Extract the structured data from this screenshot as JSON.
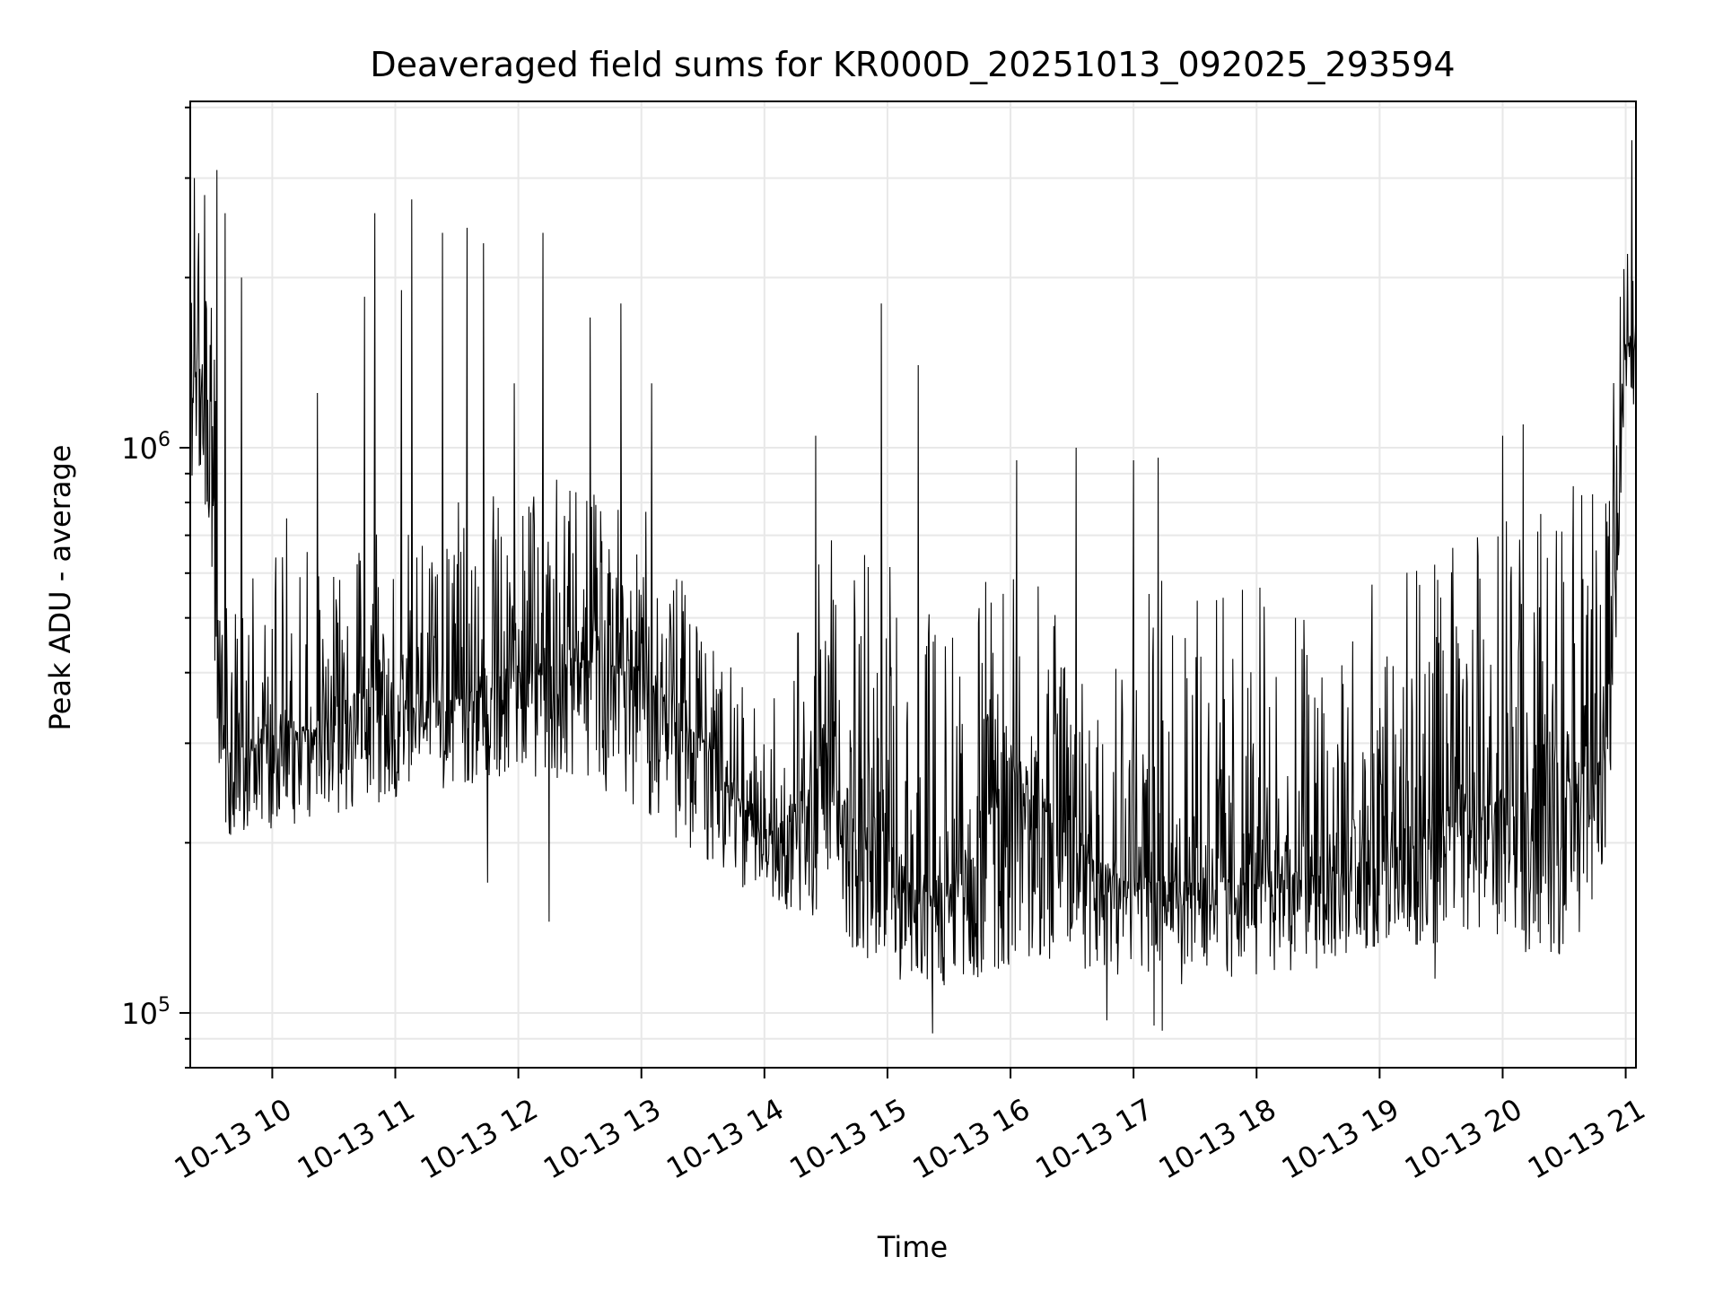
{
  "chart_data": {
    "type": "line",
    "title": "Deaveraged field sums for KR000D_20251013_092025_293594",
    "xlabel": "Time",
    "ylabel": "Peak ADU - average",
    "yscale": "log",
    "xlim": [
      "2025-10-13T09:20",
      "2025-10-13T21:05"
    ],
    "ylim": [
      80000,
      4100000
    ],
    "grid": true,
    "x_ticks": [
      "10-13 10",
      "10-13 11",
      "10-13 12",
      "10-13 13",
      "10-13 14",
      "10-13 15",
      "10-13 16",
      "10-13 17",
      "10-13 18",
      "10-13 19",
      "10-13 20",
      "10-13 21"
    ],
    "x_tick_hours": [
      10,
      11,
      12,
      13,
      14,
      15,
      16,
      17,
      18,
      19,
      20,
      21
    ],
    "y_ticks": [
      {
        "base": "10",
        "exp": "5",
        "value": 100000
      },
      {
        "base": "10",
        "exp": "6",
        "value": 1000000
      }
    ],
    "series": [
      {
        "color": "#000000",
        "profile": {
          "x": [
            "2025-10-13T09:20",
            "2025-10-13T09:30",
            "2025-10-13T09:35",
            "2025-10-13T09:45",
            "2025-10-13T10:00",
            "2025-10-13T10:30",
            "2025-10-13T11:00",
            "2025-10-13T11:30",
            "2025-10-13T12:00",
            "2025-10-13T12:30",
            "2025-10-13T13:00",
            "2025-10-13T13:30",
            "2025-10-13T14:00",
            "2025-10-13T14:30",
            "2025-10-13T15:00",
            "2025-10-13T15:30",
            "2025-10-13T16:00",
            "2025-10-13T16:30",
            "2025-10-13T17:00",
            "2025-10-13T17:30",
            "2025-10-13T18:00",
            "2025-10-13T18:30",
            "2025-10-13T19:00",
            "2025-10-13T19:30",
            "2025-10-13T20:00",
            "2025-10-13T20:30",
            "2025-10-13T20:50",
            "2025-10-13T21:00",
            "2025-10-13T21:05"
          ],
          "median": [
            1500000,
            1200000,
            310000,
            290000,
            310000,
            320000,
            340000,
            360000,
            400000,
            420000,
            400000,
            300000,
            200000,
            270000,
            170000,
            160000,
            270000,
            200000,
            170000,
            170000,
            170000,
            175000,
            180000,
            210000,
            240000,
            240000,
            280000,
            1500000,
            1600000
          ],
          "low": [
            900000,
            700000,
            210000,
            200000,
            210000,
            220000,
            240000,
            250000,
            260000,
            260000,
            230000,
            180000,
            160000,
            140000,
            115000,
            110000,
            120000,
            120000,
            115000,
            110000,
            115000,
            120000,
            130000,
            130000,
            130000,
            125000,
            160000,
            1100000,
            1200000
          ],
          "high": [
            2600000,
            2400000,
            650000,
            600000,
            650000,
            680000,
            720000,
            800000,
            850000,
            900000,
            800000,
            500000,
            330000,
            700000,
            650000,
            500000,
            650000,
            500000,
            600000,
            600000,
            580000,
            560000,
            600000,
            650000,
            800000,
            850000,
            900000,
            2400000,
            2500000
          ]
        },
        "spikes": [
          {
            "x": "2025-10-13T09:22",
            "y": 3000000
          },
          {
            "x": "2025-10-13T09:27",
            "y": 2800000
          },
          {
            "x": "2025-10-13T09:33",
            "y": 3100000
          },
          {
            "x": "2025-10-13T09:37",
            "y": 2600000
          },
          {
            "x": "2025-10-13T09:45",
            "y": 2000000
          },
          {
            "x": "2025-10-13T10:07",
            "y": 750000
          },
          {
            "x": "2025-10-13T10:22",
            "y": 1250000
          },
          {
            "x": "2025-10-13T10:45",
            "y": 1850000
          },
          {
            "x": "2025-10-13T10:50",
            "y": 2600000
          },
          {
            "x": "2025-10-13T11:03",
            "y": 1900000
          },
          {
            "x": "2025-10-13T11:08",
            "y": 2750000
          },
          {
            "x": "2025-10-13T11:23",
            "y": 2400000
          },
          {
            "x": "2025-10-13T11:35",
            "y": 2450000
          },
          {
            "x": "2025-10-13T11:43",
            "y": 2300000
          },
          {
            "x": "2025-10-13T11:58",
            "y": 1300000
          },
          {
            "x": "2025-10-13T12:12",
            "y": 2400000
          },
          {
            "x": "2025-10-13T12:35",
            "y": 1700000
          },
          {
            "x": "2025-10-13T12:50",
            "y": 1800000
          },
          {
            "x": "2025-10-13T13:05",
            "y": 1300000
          },
          {
            "x": "2025-10-13T14:25",
            "y": 1050000
          },
          {
            "x": "2025-10-13T14:57",
            "y": 1800000
          },
          {
            "x": "2025-10-13T15:15",
            "y": 1400000
          },
          {
            "x": "2025-10-13T16:03",
            "y": 950000
          },
          {
            "x": "2025-10-13T16:32",
            "y": 1000000
          },
          {
            "x": "2025-10-13T17:00",
            "y": 950000
          },
          {
            "x": "2025-10-13T17:12",
            "y": 960000
          },
          {
            "x": "2025-10-13T20:00",
            "y": 1050000
          },
          {
            "x": "2025-10-13T20:10",
            "y": 1100000
          },
          {
            "x": "2025-10-13T21:03",
            "y": 3500000
          }
        ],
        "dips": [
          {
            "x": "2025-10-13T09:32",
            "y": 420000
          },
          {
            "x": "2025-10-13T11:45",
            "y": 170000
          },
          {
            "x": "2025-10-13T12:15",
            "y": 145000
          },
          {
            "x": "2025-10-13T15:22",
            "y": 92000
          },
          {
            "x": "2025-10-13T16:47",
            "y": 97000
          },
          {
            "x": "2025-10-13T17:10",
            "y": 95000
          },
          {
            "x": "2025-10-13T17:14",
            "y": 93000
          },
          {
            "x": "2025-10-13T19:27",
            "y": 115000
          }
        ]
      }
    ]
  }
}
